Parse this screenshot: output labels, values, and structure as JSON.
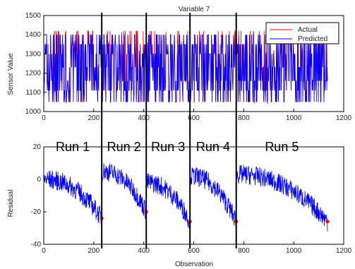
{
  "chart_data": [
    {
      "type": "line",
      "title": "Variable 7",
      "xlabel": "",
      "ylabel": "Sensor Value",
      "xlim": [
        0,
        1200
      ],
      "ylim": [
        1000,
        1500
      ],
      "xticks": [
        0,
        200,
        400,
        600,
        800,
        1000,
        1200
      ],
      "yticks": [
        1000,
        1100,
        1200,
        1300,
        1400,
        1500
      ],
      "legend": "top-right",
      "series": [
        {
          "name": "Actual",
          "color": "#ff0000",
          "levels": [
            1050,
            1110,
            1160,
            1230,
            1300,
            1350,
            1400,
            1420
          ]
        },
        {
          "name": "Predicted",
          "color": "#0000ff",
          "levels": [
            1050,
            1110,
            1160,
            1230,
            1300,
            1350,
            1400
          ]
        }
      ]
    },
    {
      "type": "line",
      "title": "",
      "xlabel": "Observation",
      "ylabel": "Residual",
      "xlim": [
        0,
        1200
      ],
      "ylim": [
        -40,
        20
      ],
      "xticks": [
        0,
        200,
        400,
        600,
        800,
        1000,
        1200
      ],
      "yticks": [
        -40,
        -20,
        0,
        20
      ],
      "series": [
        {
          "name": "",
          "color": "#0000ff"
        }
      ],
      "runs": [
        {
          "label": "Run 1",
          "x_start": 0,
          "x_end": 232,
          "start_val": 0,
          "end_val": -24
        },
        {
          "label": "Run 2",
          "x_start": 232,
          "x_end": 410,
          "start_val": 5,
          "end_val": -20
        },
        {
          "label": "Run 3",
          "x_start": 410,
          "x_end": 585,
          "start_val": -2,
          "end_val": -26
        },
        {
          "label": "Run 4",
          "x_start": 585,
          "x_end": 770,
          "start_val": 2,
          "end_val": -26
        },
        {
          "label": "Run 5",
          "x_start": 770,
          "x_end": 1135,
          "start_val": 3,
          "end_val": -26
        }
      ],
      "run_boundaries": [
        232,
        410,
        585,
        770
      ]
    }
  ]
}
